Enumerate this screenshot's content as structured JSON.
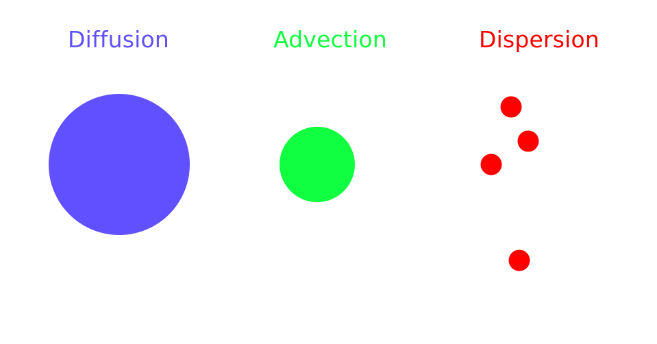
{
  "panels": [
    {
      "id": "diffusion",
      "title": "Diffusion",
      "color": "#6050ff"
    },
    {
      "id": "advection",
      "title": "Advection",
      "color": "#10ff40"
    },
    {
      "id": "dispersion",
      "title": "Dispersion",
      "color": "#ff0000"
    }
  ]
}
